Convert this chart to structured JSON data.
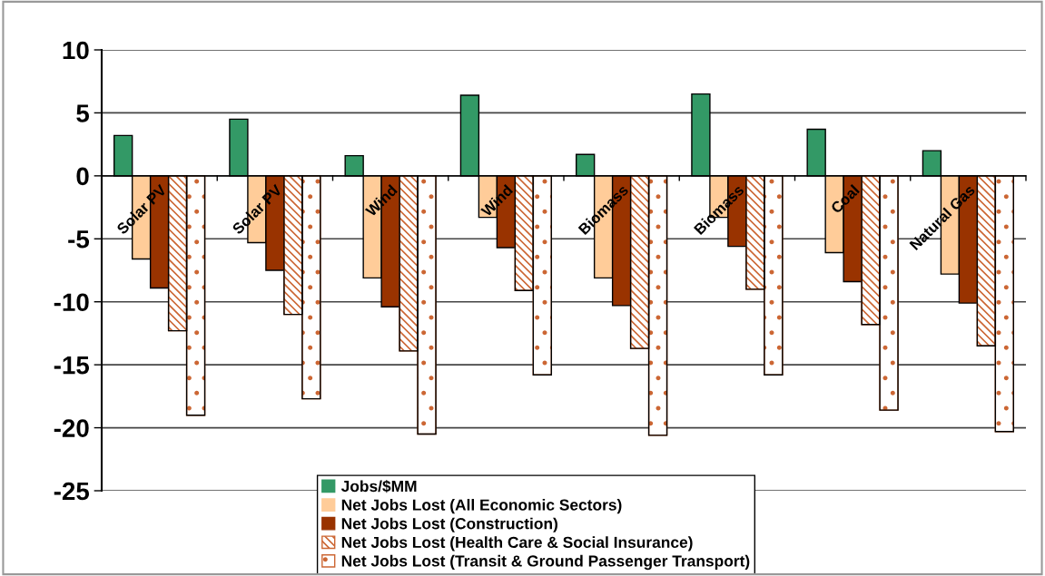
{
  "chart_data": {
    "type": "bar",
    "categories": [
      "Solar PV",
      "Solar PV",
      "Wind",
      "Wind",
      "Biomass",
      "Biomass",
      "Coal",
      "Natural Gas"
    ],
    "series": [
      {
        "name": "Jobs/$MM",
        "color": "#339966",
        "values": [
          3.2,
          4.5,
          1.6,
          6.4,
          1.7,
          6.5,
          3.7,
          2.0
        ]
      },
      {
        "name": "Net Jobs Lost (All Economic Sectors)",
        "color": "#ffcc99",
        "values": [
          -6.6,
          -5.3,
          -8.1,
          -3.3,
          -8.1,
          -3.3,
          -6.1,
          -7.8
        ]
      },
      {
        "name": "Net Jobs Lost (Construction)",
        "color": "#993300",
        "values": [
          -8.9,
          -7.5,
          -10.4,
          -5.7,
          -10.3,
          -5.6,
          -8.4,
          -10.1
        ]
      },
      {
        "name": "Net Jobs Lost (Health Care & Social Insurance)",
        "color": "#cc6633",
        "values": [
          -12.3,
          -11.0,
          -13.9,
          -9.1,
          -13.7,
          -9.0,
          -11.8,
          -13.5
        ]
      },
      {
        "name": "Net Jobs Lost (Transit & Ground Passenger Transport)",
        "color": "#cc6633",
        "values": [
          -19.0,
          -17.7,
          -20.5,
          -15.8,
          -20.6,
          -15.8,
          -18.6,
          -20.3
        ]
      }
    ],
    "ylim": [
      -25,
      10
    ],
    "yticks": [
      -25,
      -20,
      -15,
      -10,
      -5,
      0,
      5,
      10
    ],
    "grid": "y",
    "legend": "bottom"
  }
}
